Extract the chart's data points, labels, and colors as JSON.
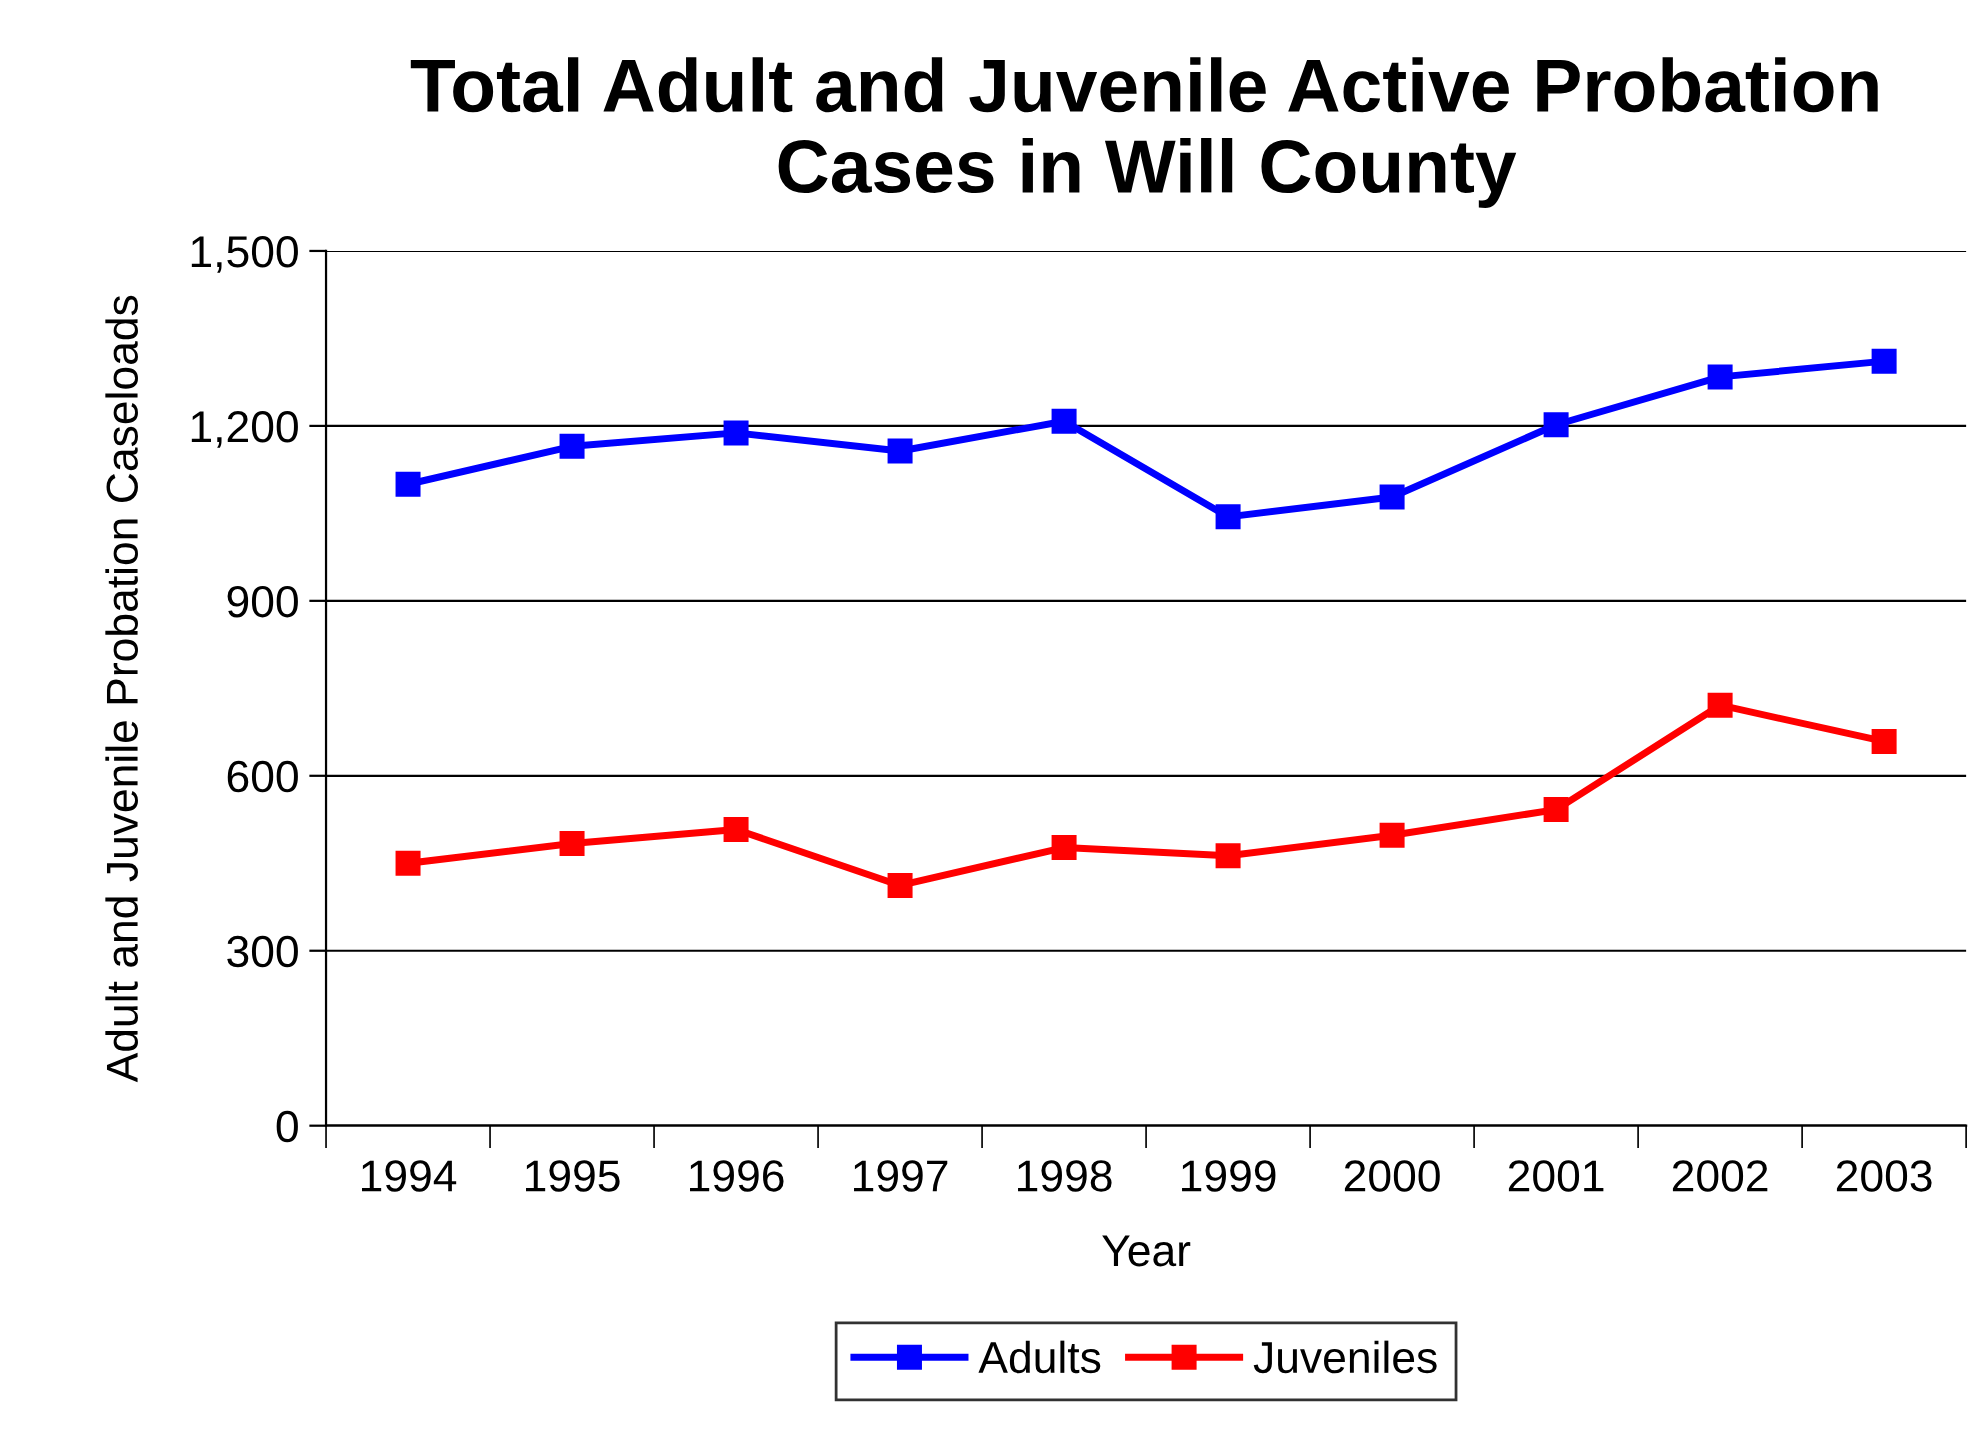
{
  "chart_data": {
    "type": "line",
    "title": "Total Adult and Juvenile Active Probation Cases in Will County",
    "xlabel": "Year",
    "ylabel": "Adult and Juvenile Probation Caseloads",
    "categories": [
      "1994",
      "1995",
      "1996",
      "1997",
      "1998",
      "1999",
      "2000",
      "2001",
      "2002",
      "2003"
    ],
    "series": [
      {
        "name": "Adults",
        "color": "#0000ff",
        "values": [
          1100,
          1165,
          1188,
          1157,
          1208,
          1044,
          1078,
          1202,
          1284,
          1311
        ]
      },
      {
        "name": "Juveniles",
        "color": "#ff0000",
        "values": [
          450,
          484,
          508,
          412,
          477,
          463,
          498,
          542,
          721,
          659
        ]
      }
    ],
    "ylim": [
      0,
      1500
    ],
    "yticks": [
      {
        "value": 0,
        "label": "0"
      },
      {
        "value": 300,
        "label": "300"
      },
      {
        "value": 600,
        "label": "600"
      },
      {
        "value": 900,
        "label": "900"
      },
      {
        "value": 1200,
        "label": "1,200"
      },
      {
        "value": 1500,
        "label": "1,500"
      }
    ],
    "grid": "y",
    "legend": "bottom",
    "marker": "square",
    "line_style": "solid"
  }
}
